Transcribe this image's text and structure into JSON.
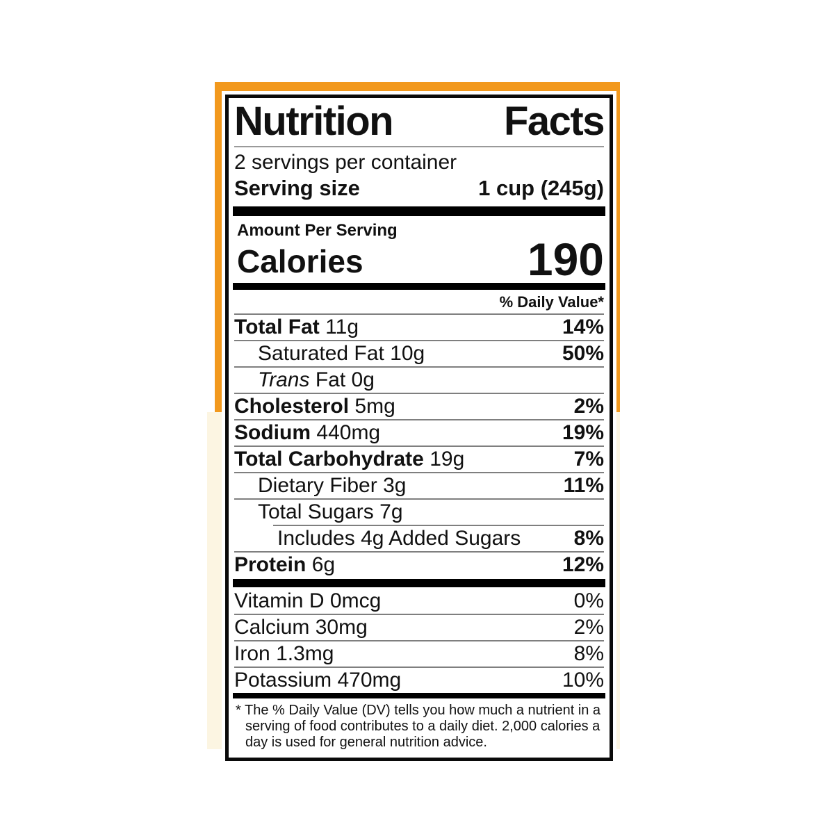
{
  "colors": {
    "orange": "#F2991E",
    "cream": "#FCF5E2",
    "label_background": "#FFFFFF",
    "ink": "#111111",
    "hairline": "#7F7F7F"
  },
  "label": {
    "title": "Nutrition Facts",
    "servings_per_container": "2 servings per container",
    "serving_size": {
      "label": "Serving size",
      "value": "1 cup (245g)"
    },
    "amount_per_serving": "Amount Per Serving",
    "calories": {
      "label": "Calories",
      "value": "190"
    },
    "daily_value_header": "% Daily Value*",
    "nutrients": [
      {
        "name": "Total Fat",
        "amount": "11g",
        "dv": "14%"
      },
      {
        "name": "Saturated Fat",
        "amount": "10g",
        "dv": "50%"
      },
      {
        "name": "Trans",
        "amount": "Fat 0g",
        "dv": ""
      },
      {
        "name": "Cholesterol",
        "amount": "5mg",
        "dv": "2%"
      },
      {
        "name": "Sodium",
        "amount": "440mg",
        "dv": "19%"
      },
      {
        "name": "Total Carbohydrate",
        "amount": "19g",
        "dv": "7%"
      },
      {
        "name": "Dietary Fiber",
        "amount": "3g",
        "dv": "11%"
      },
      {
        "name": "Total Sugars",
        "amount": "7g",
        "dv": ""
      },
      {
        "name": "Includes 4g Added Sugars",
        "amount": "",
        "dv": "8%"
      },
      {
        "name": "Protein",
        "amount": "6g",
        "dv": "12%"
      }
    ],
    "vitamins": [
      {
        "name": "Vitamin D",
        "amount": "0mcg",
        "dv": "0%"
      },
      {
        "name": "Calcium",
        "amount": "30mg",
        "dv": "2%"
      },
      {
        "name": "Iron",
        "amount": "1.3mg",
        "dv": "8%"
      },
      {
        "name": "Potassium",
        "amount": "470mg",
        "dv": "10%"
      }
    ],
    "footnote": "* The % Daily Value (DV) tells you how much a nutrient in a serving of food contributes to a daily diet. 2,000 calories a day is used for general nutrition advice."
  }
}
